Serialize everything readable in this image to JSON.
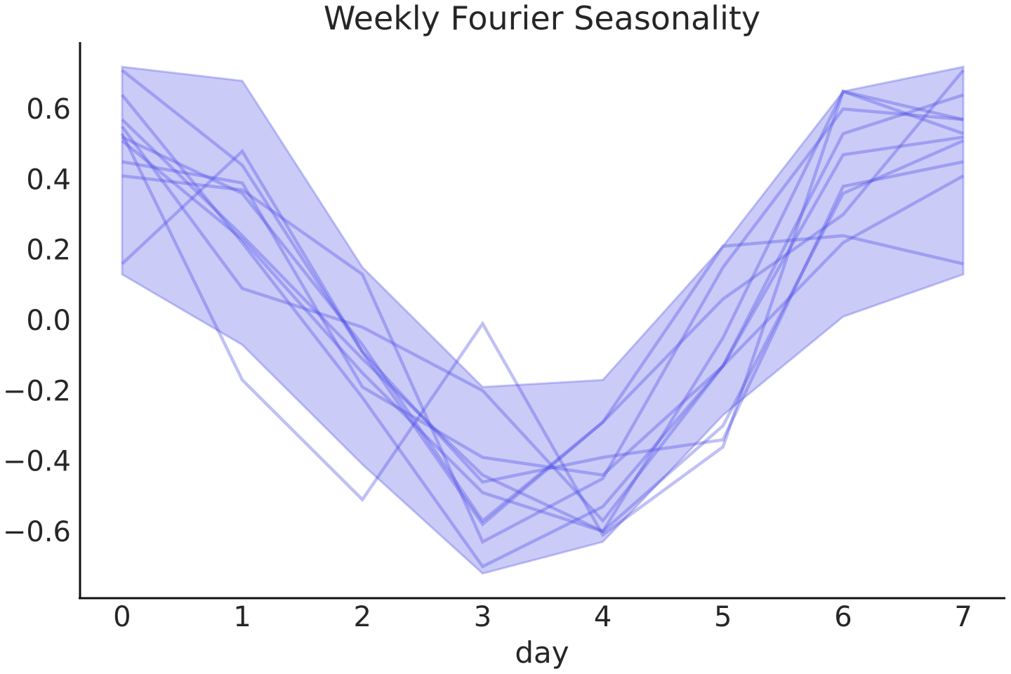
{
  "chart_data": {
    "type": "line",
    "title": "Weekly Fourier Seasonality",
    "xlabel": "day",
    "ylabel": "",
    "x": [
      0,
      1,
      2,
      3,
      4,
      5,
      6,
      7
    ],
    "xticks": [
      "0",
      "1",
      "2",
      "3",
      "4",
      "5",
      "6",
      "7"
    ],
    "yticks": [
      "−0.6",
      "−0.4",
      "−0.2",
      "0.0",
      "0.2",
      "0.4",
      "0.6"
    ],
    "ytick_values": [
      -0.6,
      -0.4,
      -0.2,
      0.0,
      0.2,
      0.4,
      0.6
    ],
    "xlim": [
      -0.35,
      7.35
    ],
    "ylim": [
      -0.79,
      0.79
    ],
    "grid": false,
    "band": {
      "lower": [
        0.13,
        -0.07,
        -0.41,
        -0.72,
        -0.63,
        -0.27,
        0.01,
        0.13
      ],
      "upper": [
        0.72,
        0.68,
        0.15,
        -0.19,
        -0.17,
        0.21,
        0.65,
        0.72
      ],
      "color": "#8c8cf0",
      "opacity": 0.45
    },
    "line_color": "#4a4ae8",
    "line_opacity": 0.35,
    "series": [
      {
        "values": [
          0.71,
          0.44,
          -0.09,
          -0.58,
          -0.29,
          0.06,
          0.3,
          0.71
        ]
      },
      {
        "values": [
          0.64,
          0.22,
          -0.22,
          -0.7,
          -0.53,
          -0.13,
          0.53,
          0.64
        ]
      },
      {
        "values": [
          0.57,
          0.24,
          -0.11,
          -0.44,
          -0.6,
          -0.05,
          0.65,
          0.57
        ]
      },
      {
        "values": [
          0.52,
          0.36,
          -0.07,
          -0.57,
          -0.29,
          0.21,
          0.24,
          0.16
        ]
      },
      {
        "values": [
          0.51,
          0.23,
          -0.15,
          -0.49,
          -0.6,
          -0.3,
          0.36,
          0.51
        ]
      },
      {
        "values": [
          0.45,
          0.39,
          -0.19,
          -0.39,
          -0.44,
          -0.13,
          0.47,
          0.52
        ]
      },
      {
        "values": [
          0.41,
          0.37,
          0.13,
          -0.63,
          -0.45,
          0.15,
          0.6,
          0.57
        ]
      },
      {
        "values": [
          0.16,
          0.48,
          -0.09,
          -0.46,
          -0.39,
          -0.34,
          0.38,
          0.45
        ]
      },
      {
        "values": [
          0.55,
          0.09,
          -0.02,
          -0.2,
          -0.57,
          -0.13,
          0.22,
          0.41
        ]
      },
      {
        "values": [
          0.53,
          -0.17,
          -0.51,
          -0.01,
          -0.61,
          -0.36,
          0.65,
          0.53
        ]
      }
    ]
  }
}
